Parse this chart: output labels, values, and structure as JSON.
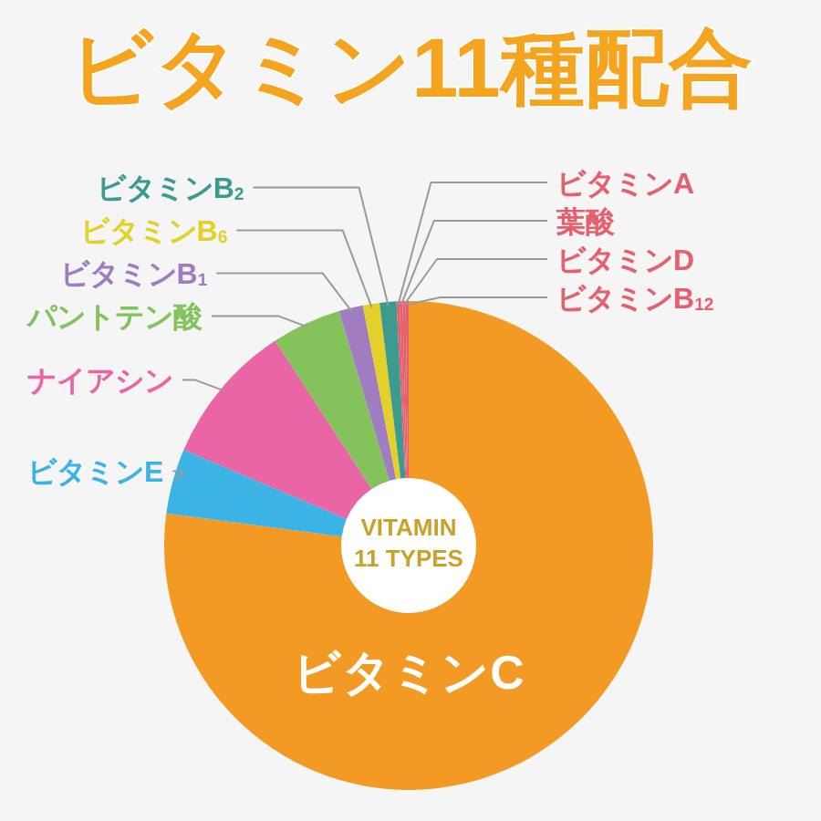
{
  "chart_data": {
    "type": "donut",
    "title": "ビタミン11種配合",
    "categories": [
      "ビタミンC",
      "ビタミンE",
      "ナイアシン",
      "パントテン酸",
      "ビタミンB$_{1}$",
      "ビタミンB$_{6}$",
      "ビタミンB$_{2}$",
      "ビタミンA",
      "葉酸",
      "ビタミンD",
      "ビタミンB$_{12}$"
    ],
    "values": [
      77.1,
      4.3,
      9.4,
      4.6,
      1.6,
      1.1,
      1.1,
      0.2,
      0.2,
      0.2,
      0.2
    ],
    "colors": [
      "#f39a24",
      "#3cb3e5",
      "#ea65a6",
      "#84c25c",
      "#a07cc0",
      "#e3d12a",
      "#3c9a8e",
      "#e5606e",
      "#e5606e",
      "#e5606e",
      "#e5606e"
    ],
    "annotations": [
      "VITAMIN",
      "11 TYPES"
    ]
  }
}
